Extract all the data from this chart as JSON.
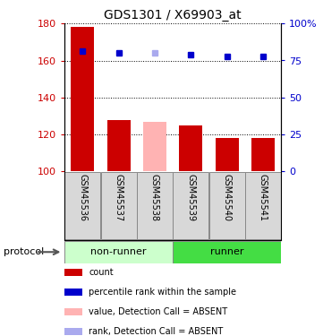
{
  "title": "GDS1301 / X69903_at",
  "samples": [
    "GSM45536",
    "GSM45537",
    "GSM45538",
    "GSM45539",
    "GSM45540",
    "GSM45541"
  ],
  "bar_values": [
    178,
    128,
    127,
    125,
    118,
    118
  ],
  "bar_colors": [
    "#cc0000",
    "#cc0000",
    "#ffb3b3",
    "#cc0000",
    "#cc0000",
    "#cc0000"
  ],
  "rank_values": [
    165,
    164,
    164,
    163,
    162,
    162
  ],
  "rank_colors": [
    "#0000cc",
    "#0000cc",
    "#aaaaee",
    "#0000cc",
    "#0000cc",
    "#0000cc"
  ],
  "ylim_left": [
    100,
    180
  ],
  "ylim_right": [
    0,
    100
  ],
  "yticks_left": [
    100,
    120,
    140,
    160,
    180
  ],
  "yticks_right": [
    0,
    25,
    50,
    75,
    100
  ],
  "ytick_labels_right": [
    "0",
    "25",
    "50",
    "75",
    "100%"
  ],
  "nonrunner_color": "#ccffcc",
  "runner_color": "#44dd44",
  "nonrunner_label": "non-runner",
  "runner_label": "runner",
  "protocol_label": "protocol",
  "legend_items": [
    {
      "color": "#cc0000",
      "label": "count"
    },
    {
      "color": "#0000cc",
      "label": "percentile rank within the sample"
    },
    {
      "color": "#ffb3b3",
      "label": "value, Detection Call = ABSENT"
    },
    {
      "color": "#aaaaee",
      "label": "rank, Detection Call = ABSENT"
    }
  ],
  "tick_color_left": "#cc0000",
  "tick_color_right": "#0000cc",
  "bg_color": "#ffffff",
  "xtick_gray": "#d8d8d8",
  "xtick_border": "#888888"
}
